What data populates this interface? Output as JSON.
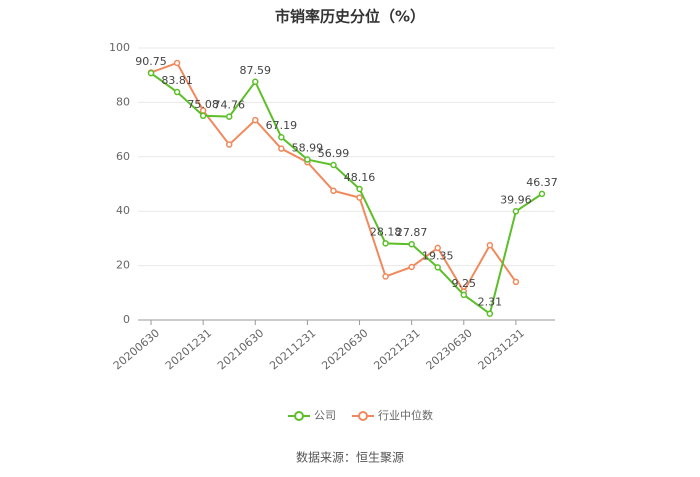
{
  "chart_data": {
    "type": "line",
    "title": "市销率历史分位（%）",
    "source": "数据来源：恒生聚源",
    "categories": [
      "20200630",
      null,
      "20201231",
      null,
      "20210630",
      null,
      "20211231",
      null,
      "20220630",
      null,
      "20221231",
      null,
      "20230630",
      null,
      "20231231",
      null
    ],
    "series": [
      {
        "name": "公司",
        "color": "#5cbf2a",
        "values": [
          90.75,
          83.81,
          75.08,
          74.76,
          87.59,
          67.19,
          58.99,
          56.99,
          48.16,
          28.18,
          27.87,
          19.35,
          9.25,
          2.31,
          39.96,
          46.37
        ],
        "show_labels": true
      },
      {
        "name": "行业中位数",
        "color": "#f08a5d",
        "values": [
          91,
          94.5,
          77,
          64.5,
          73.5,
          63,
          58,
          47.5,
          45,
          16,
          19.5,
          26.5,
          10.5,
          27.5,
          14,
          null
        ],
        "show_labels": false
      }
    ],
    "ylim": [
      0,
      100
    ],
    "yticks": [
      0,
      20,
      40,
      60,
      80,
      100
    ],
    "grid": true
  }
}
